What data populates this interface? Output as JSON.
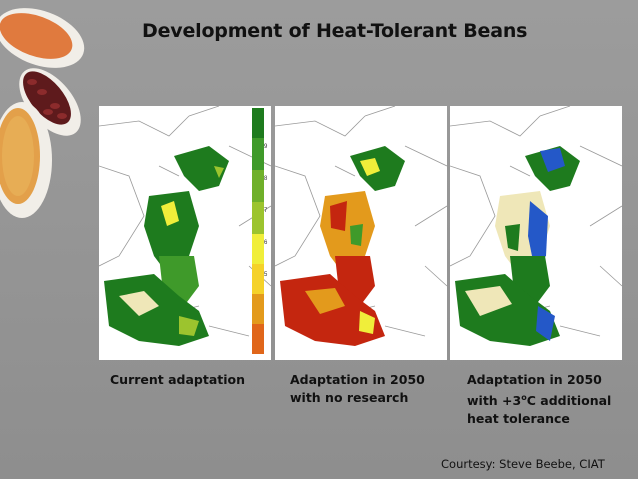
{
  "slide": {
    "title": "Development of Heat-Tolerant Beans",
    "captions": {
      "current": "Current adaptation",
      "no_research_line1": "Adaptation in 2050",
      "no_research_line2": "with no research",
      "heat_line1": "Adaptation in 2050",
      "heat_line2_pre": "with +3",
      "heat_line2_sup": "o",
      "heat_line2_post": "C additional",
      "heat_line3": "heat tolerance"
    },
    "credit": "Courtesy: Steve Beebe, CIAT"
  },
  "colors": {
    "dark_green": "#1e7b1e",
    "green": "#3f9a2a",
    "yellow_green": "#9cc42e",
    "yellow": "#f0ee3a",
    "cream": "#efe7b8",
    "orange": "#e39a1c",
    "red": "#c4260f",
    "blue": "#2458c8"
  },
  "colorbar": {
    "tick_labels": [
      "9",
      "8",
      "7",
      "6",
      "5"
    ]
  }
}
